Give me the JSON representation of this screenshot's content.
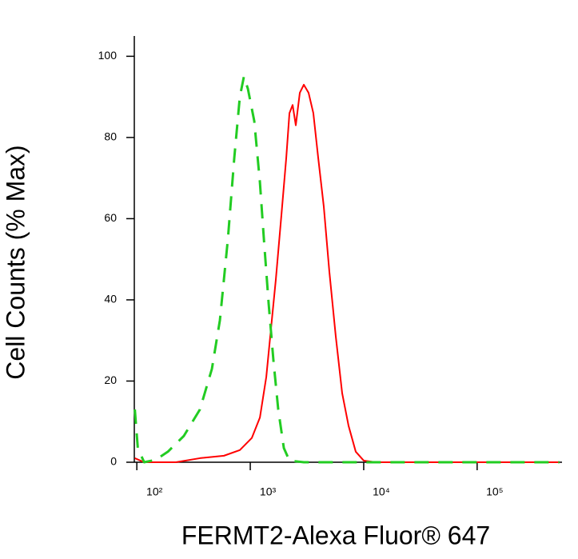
{
  "chart_data": {
    "type": "line",
    "x_label": "FERMT2-Alexa Fluor® 647",
    "y_label": "Cell Counts (% Max)",
    "x_log": true,
    "xlim": [
      95,
      560000
    ],
    "xticks": [
      {
        "value": 100,
        "label": "10²"
      },
      {
        "value": 1000,
        "label": "10³"
      },
      {
        "value": 10000,
        "label": "10⁴"
      },
      {
        "value": 100000,
        "label": "10⁵"
      }
    ],
    "ylim": [
      0,
      105
    ],
    "yticks": [
      0,
      20,
      40,
      60,
      80,
      100
    ],
    "series": [
      {
        "color": "#ff0000",
        "dash": false,
        "x": [
          96,
          116,
          221,
          360,
          586,
          809,
          1033,
          1216,
          1384,
          1549,
          1680,
          1883,
          2076,
          2215,
          2363,
          2520,
          2733,
          2965,
          3266,
          3597,
          3970,
          4446,
          4977,
          5672,
          6459,
          7350,
          8508,
          10000,
          12760,
          531000
        ],
        "values": [
          1,
          0,
          0,
          1,
          1.6,
          3,
          6,
          11,
          21,
          35,
          45,
          61,
          75,
          86,
          88,
          83,
          91,
          93,
          91,
          86,
          75,
          63,
          47,
          31,
          17,
          9,
          2.6,
          0.4,
          0,
          0
        ]
      },
      {
        "color": "#22cc22",
        "dash": true,
        "x": [
          96,
          102,
          116,
          147,
          188,
          260,
          360,
          459,
          540,
          635,
          723,
          809,
          879,
          953,
          1085,
          1216,
          1318,
          1453,
          1601,
          1764,
          1977,
          2215,
          2965,
          10840,
          531000
        ],
        "values": [
          13,
          3.5,
          0,
          0.6,
          2.6,
          6.5,
          13,
          23,
          35,
          55,
          75,
          90,
          95,
          92,
          84,
          69,
          55,
          39,
          25,
          13,
          3.5,
          0.4,
          0,
          0,
          0
        ]
      }
    ]
  }
}
